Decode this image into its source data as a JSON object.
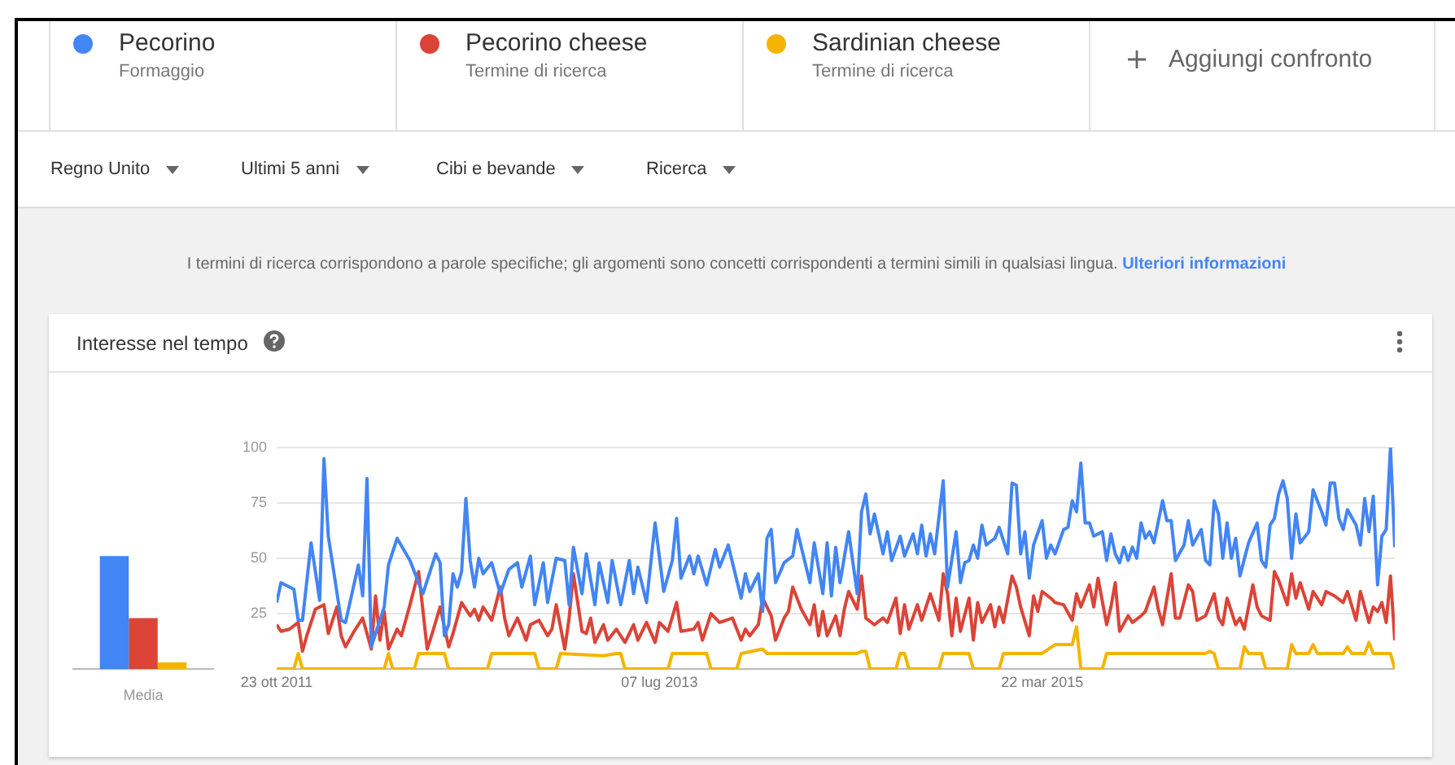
{
  "chart_data": [
    {
      "type": "bar",
      "title": "Interesse nel tempo",
      "categories": [
        "Media"
      ],
      "ylim": [
        0,
        100
      ],
      "tick_labels": "x",
      "series": [
        {
          "color": "#4285f4",
          "values": [
            51
          ]
        },
        {
          "color": "#db4437",
          "values": [
            23
          ]
        },
        {
          "color": "#f4b400",
          "values": [
            3
          ]
        }
      ]
    },
    {
      "type": "line",
      "legend": "top",
      "grid": "y",
      "annotations": [
        "Formaggio",
        "Termine di ricerca",
        "Termine di ricerca",
        "Aggiungi confronto",
        "Regno Unito",
        "Ultimi 5 anni",
        "Cibi e bevande",
        "Ricerca",
        "I termini di ricerca corrispondono a parole specifiche; gli argomenti sono concetti corrispondenti a termini simili in qualsiasi lingua.",
        "Ulteriori informazioni"
      ],
      "xlim": [
        "2011-10-23",
        "2016-10-16"
      ],
      "xticks": [
        {
          "value": "2011-10-23",
          "label": "23 ott 2011"
        },
        {
          "value": "2013-07-07",
          "label": "07 lug 2013"
        },
        {
          "value": "2015-03-22",
          "label": "22 mar 2015"
        }
      ],
      "ylim": [
        0,
        100
      ],
      "yticks": [
        {
          "value": 0,
          "label": null
        },
        25,
        50,
        75,
        100
      ],
      "series": [
        {
          "name": "Pecorino",
          "color": "#4285f4",
          "x": [
            "2011-10-23",
            "2011-10-30",
            "2011-11-20",
            "2011-11-27",
            "2011-12-04",
            "2011-12-18",
            "2012-01-01",
            "2012-01-08",
            "2012-01-15",
            "2012-02-05",
            "2012-02-12",
            "2012-03-04",
            "2012-03-11",
            "2012-03-18",
            "2012-03-25",
            "2012-04-15",
            "2012-04-22",
            "2012-05-06",
            "2012-05-27",
            "2012-06-17",
            "2012-07-01",
            "2012-07-08",
            "2012-07-15",
            "2012-07-22",
            "2012-07-29",
            "2012-08-05",
            "2012-08-12",
            "2012-08-19",
            "2012-08-26",
            "2012-09-02",
            "2012-09-09",
            "2012-09-16",
            "2012-09-23",
            "2012-10-07",
            "2012-10-21",
            "2012-11-04",
            "2012-11-18",
            "2012-11-25",
            "2012-12-09",
            "2012-12-16",
            "2012-12-30",
            "2013-01-06",
            "2013-01-20",
            "2013-02-03",
            "2013-02-10",
            "2013-02-17",
            "2013-03-03",
            "2013-03-10",
            "2013-03-24",
            "2013-03-31",
            "2013-04-14",
            "2013-04-21",
            "2013-05-05",
            "2013-05-19",
            "2013-05-26",
            "2013-06-02",
            "2013-06-16",
            "2013-06-30",
            "2013-07-14",
            "2013-07-28",
            "2013-08-04",
            "2013-08-11",
            "2013-08-25",
            "2013-09-01",
            "2013-09-08",
            "2013-09-22",
            "2013-10-06",
            "2013-10-13",
            "2013-10-27",
            "2013-11-17",
            "2013-11-24",
            "2013-12-01",
            "2013-12-15",
            "2013-12-22",
            "2013-12-29",
            "2014-01-05",
            "2014-01-12",
            "2014-01-26",
            "2014-02-09",
            "2014-02-16",
            "2014-03-09",
            "2014-03-16",
            "2014-03-30",
            "2014-04-06",
            "2014-04-13",
            "2014-04-20",
            "2014-04-27",
            "2014-05-11",
            "2014-05-25",
            "2014-06-01",
            "2014-06-08",
            "2014-06-15",
            "2014-06-22",
            "2014-07-06",
            "2014-07-13",
            "2014-07-20",
            "2014-08-03",
            "2014-08-10",
            "2014-08-24",
            "2014-08-31",
            "2014-09-07",
            "2014-09-14",
            "2014-09-21",
            "2014-09-28",
            "2014-10-12",
            "2014-10-19",
            "2014-11-02",
            "2014-11-09",
            "2014-11-16",
            "2014-11-23",
            "2014-11-30",
            "2014-12-07",
            "2014-12-14",
            "2014-12-21",
            "2015-01-04",
            "2015-01-11",
            "2015-01-25",
            "2015-02-01",
            "2015-02-08",
            "2015-02-15",
            "2015-02-22",
            "2015-03-01",
            "2015-03-08",
            "2015-03-22",
            "2015-03-29",
            "2015-04-05",
            "2015-04-12",
            "2015-04-26",
            "2015-05-03",
            "2015-05-10",
            "2015-05-17",
            "2015-05-24",
            "2015-05-31",
            "2015-06-07",
            "2015-06-14",
            "2015-06-28",
            "2015-07-05",
            "2015-07-12",
            "2015-07-19",
            "2015-07-26",
            "2015-08-02",
            "2015-08-09",
            "2015-08-16",
            "2015-08-23",
            "2015-08-30",
            "2015-09-06",
            "2015-09-13",
            "2015-09-20",
            "2015-10-04",
            "2015-10-11",
            "2015-10-18",
            "2015-10-25",
            "2015-11-08",
            "2015-11-15",
            "2015-11-22",
            "2015-12-06",
            "2015-12-13",
            "2015-12-20",
            "2015-12-27",
            "2016-01-03",
            "2016-01-10",
            "2016-01-17",
            "2016-01-24",
            "2016-01-31",
            "2016-02-07",
            "2016-02-21",
            "2016-03-06",
            "2016-03-13",
            "2016-03-20",
            "2016-03-27",
            "2016-04-03",
            "2016-04-10",
            "2016-04-17",
            "2016-04-24",
            "2016-05-01",
            "2016-05-08",
            "2016-05-15",
            "2016-05-29",
            "2016-06-05",
            "2016-06-19",
            "2016-06-26",
            "2016-07-03",
            "2016-07-10",
            "2016-07-17",
            "2016-07-24",
            "2016-07-31",
            "2016-08-14",
            "2016-08-21",
            "2016-08-28",
            "2016-09-04",
            "2016-09-11",
            "2016-09-18",
            "2016-09-25",
            "2016-10-02",
            "2016-10-09",
            "2016-10-16"
          ],
          "values": [
            30,
            39,
            36,
            22,
            22,
            57,
            31,
            95,
            60,
            22,
            21,
            47,
            33,
            86,
            10,
            28,
            47,
            59,
            49,
            34,
            46,
            52,
            48,
            15,
            20,
            43,
            37,
            44,
            77,
            49,
            37,
            50,
            43,
            48,
            34,
            45,
            48,
            37,
            51,
            29,
            48,
            30,
            50,
            49,
            29,
            55,
            34,
            52,
            29,
            48,
            30,
            49,
            29,
            49,
            34,
            46,
            30,
            66,
            35,
            49,
            68,
            41,
            51,
            43,
            51,
            38,
            54,
            46,
            56,
            32,
            43,
            35,
            43,
            26,
            59,
            63,
            39,
            48,
            51,
            63,
            39,
            57,
            34,
            57,
            33,
            55,
            39,
            62,
            34,
            71,
            79,
            61,
            70,
            52,
            62,
            49,
            60,
            51,
            61,
            52,
            65,
            51,
            61,
            52,
            85,
            37,
            62,
            39,
            48,
            49,
            56,
            50,
            65,
            56,
            59,
            64,
            52,
            84,
            83,
            52,
            62,
            41,
            56,
            67,
            50,
            56,
            52,
            63,
            64,
            76,
            71,
            93,
            66,
            66,
            60,
            62,
            49,
            61,
            52,
            48,
            55,
            49,
            55,
            50,
            66,
            59,
            62,
            57,
            76,
            67,
            67,
            49,
            56,
            67,
            56,
            63,
            49,
            47,
            76,
            70,
            50,
            66,
            50,
            59,
            42,
            57,
            66,
            49,
            46,
            65,
            68,
            79,
            85,
            77,
            50,
            70,
            57,
            62,
            81,
            71,
            65,
            84,
            84,
            68,
            63,
            72,
            65,
            56,
            77,
            62,
            78,
            38,
            60,
            63,
            100,
            55
          ]
        },
        {
          "name": "Pecorino cheese",
          "color": "#db4437",
          "x": [
            "2011-10-23",
            "2011-10-30",
            "2011-11-13",
            "2011-11-27",
            "2011-12-04",
            "2011-12-11",
            "2011-12-25",
            "2012-01-08",
            "2012-01-15",
            "2012-01-29",
            "2012-02-05",
            "2012-02-12",
            "2012-02-26",
            "2012-03-11",
            "2012-03-18",
            "2012-03-25",
            "2012-04-01",
            "2012-04-08",
            "2012-04-15",
            "2012-04-22",
            "2012-05-06",
            "2012-05-13",
            "2012-05-27",
            "2012-06-10",
            "2012-06-24",
            "2012-07-01",
            "2012-07-15",
            "2012-07-29",
            "2012-08-05",
            "2012-08-19",
            "2012-09-02",
            "2012-09-09",
            "2012-09-16",
            "2012-09-23",
            "2012-10-07",
            "2012-10-21",
            "2012-10-28",
            "2012-11-04",
            "2012-11-18",
            "2012-12-02",
            "2012-12-09",
            "2012-12-23",
            "2013-01-06",
            "2013-01-13",
            "2013-01-20",
            "2013-02-03",
            "2013-02-10",
            "2013-02-17",
            "2013-03-03",
            "2013-03-10",
            "2013-03-17",
            "2013-03-24",
            "2013-04-07",
            "2013-04-14",
            "2013-04-28",
            "2013-05-12",
            "2013-05-26",
            "2013-06-02",
            "2013-06-16",
            "2013-06-30",
            "2013-07-07",
            "2013-07-21",
            "2013-08-04",
            "2013-08-11",
            "2013-09-01",
            "2013-09-08",
            "2013-09-15",
            "2013-09-29",
            "2013-10-13",
            "2013-11-03",
            "2013-11-17",
            "2013-11-24",
            "2013-12-01",
            "2013-12-15",
            "2013-12-22",
            "2014-01-05",
            "2014-01-12",
            "2014-01-26",
            "2014-02-02",
            "2014-02-09",
            "2014-02-23",
            "2014-03-09",
            "2014-03-16",
            "2014-03-23",
            "2014-03-30",
            "2014-04-06",
            "2014-04-20",
            "2014-04-27",
            "2014-05-04",
            "2014-05-11",
            "2014-05-25",
            "2014-06-01",
            "2014-06-08",
            "2014-06-22",
            "2014-07-06",
            "2014-07-13",
            "2014-07-27",
            "2014-08-03",
            "2014-08-10",
            "2014-08-17",
            "2014-08-31",
            "2014-09-07",
            "2014-09-21",
            "2014-10-05",
            "2014-10-12",
            "2014-10-19",
            "2014-10-26",
            "2014-11-02",
            "2014-11-09",
            "2014-11-23",
            "2014-11-30",
            "2014-12-07",
            "2014-12-14",
            "2014-12-28",
            "2015-01-04",
            "2015-01-11",
            "2015-01-18",
            "2015-02-01",
            "2015-02-08",
            "2015-02-15",
            "2015-03-01",
            "2015-03-08",
            "2015-03-15",
            "2015-03-22",
            "2015-04-05",
            "2015-04-12",
            "2015-04-26",
            "2015-05-10",
            "2015-05-17",
            "2015-05-24",
            "2015-06-07",
            "2015-06-14",
            "2015-06-21",
            "2015-07-05",
            "2015-07-12",
            "2015-07-19",
            "2015-07-26",
            "2015-08-09",
            "2015-08-16",
            "2015-08-30",
            "2015-09-06",
            "2015-09-20",
            "2015-09-27",
            "2015-10-04",
            "2015-10-18",
            "2015-10-25",
            "2015-11-01",
            "2015-11-15",
            "2015-11-22",
            "2015-11-29",
            "2015-12-13",
            "2015-12-27",
            "2016-01-03",
            "2016-01-10",
            "2016-01-17",
            "2016-01-31",
            "2016-02-07",
            "2016-02-14",
            "2016-02-28",
            "2016-03-06",
            "2016-03-13",
            "2016-03-27",
            "2016-04-03",
            "2016-04-10",
            "2016-04-24",
            "2016-05-01",
            "2016-05-08",
            "2016-05-15",
            "2016-05-29",
            "2016-06-05",
            "2016-06-19",
            "2016-06-26",
            "2016-07-10",
            "2016-07-24",
            "2016-07-31",
            "2016-08-14",
            "2016-08-21",
            "2016-09-04",
            "2016-09-11",
            "2016-09-18",
            "2016-09-25",
            "2016-10-02",
            "2016-10-09",
            "2016-10-16"
          ],
          "values": [
            20,
            17,
            18,
            21,
            8,
            15,
            27,
            29,
            16,
            28,
            15,
            10,
            17,
            23,
            16,
            9,
            33,
            13,
            26,
            9,
            18,
            15,
            29,
            44,
            9,
            15,
            28,
            10,
            16,
            30,
            24,
            27,
            22,
            28,
            22,
            37,
            23,
            15,
            23,
            13,
            20,
            22,
            15,
            18,
            29,
            9,
            23,
            43,
            17,
            16,
            23,
            12,
            20,
            13,
            18,
            12,
            20,
            13,
            21,
            12,
            21,
            17,
            30,
            17,
            18,
            21,
            13,
            25,
            21,
            23,
            13,
            18,
            15,
            20,
            32,
            24,
            13,
            23,
            26,
            37,
            27,
            20,
            29,
            15,
            26,
            15,
            24,
            15,
            27,
            35,
            27,
            42,
            23,
            20,
            23,
            21,
            32,
            16,
            29,
            18,
            29,
            22,
            34,
            22,
            43,
            34,
            15,
            32,
            17,
            32,
            13,
            30,
            21,
            29,
            19,
            28,
            21,
            42,
            37,
            28,
            15,
            33,
            26,
            35,
            32,
            30,
            29,
            22,
            34,
            28,
            38,
            28,
            41,
            20,
            28,
            39,
            17,
            24,
            21,
            24,
            26,
            37,
            27,
            20,
            43,
            23,
            23,
            38,
            35,
            22,
            24,
            34,
            23,
            20,
            32,
            20,
            23,
            18,
            38,
            28,
            24,
            22,
            44,
            40,
            29,
            43,
            32,
            39,
            27,
            35,
            29,
            35,
            33,
            30,
            35,
            22,
            35,
            21,
            28,
            26,
            30,
            21,
            42,
            13
          ]
        },
        {
          "name": "Sardinian cheese",
          "color": "#f4b400",
          "x": [
            "2011-10-23",
            "2011-11-20",
            "2011-11-27",
            "2011-12-04",
            "2012-04-15",
            "2012-04-22",
            "2012-04-29",
            "2012-06-03",
            "2012-06-10",
            "2012-07-22",
            "2012-07-29",
            "2012-09-30",
            "2012-10-07",
            "2012-12-16",
            "2012-12-23",
            "2013-01-20",
            "2013-01-27",
            "2013-04-07",
            "2013-04-28",
            "2013-05-05",
            "2013-05-12",
            "2013-07-21",
            "2013-07-28",
            "2013-09-22",
            "2013-09-29",
            "2013-11-10",
            "2013-11-17",
            "2013-12-22",
            "2013-12-29",
            "2014-05-25",
            "2014-06-01",
            "2014-06-08",
            "2014-06-15",
            "2014-07-27",
            "2014-08-03",
            "2014-08-10",
            "2014-08-17",
            "2014-10-05",
            "2014-10-12",
            "2014-11-23",
            "2014-11-30",
            "2015-01-11",
            "2015-01-18",
            "2015-03-22",
            "2015-04-12",
            "2015-05-10",
            "2015-05-17",
            "2015-05-24",
            "2015-06-28",
            "2015-07-05",
            "2015-12-13",
            "2015-12-20",
            "2015-12-27",
            "2016-01-03",
            "2016-02-07",
            "2016-02-14",
            "2016-02-21",
            "2016-03-13",
            "2016-03-20",
            "2016-04-24",
            "2016-05-01",
            "2016-05-08",
            "2016-05-29",
            "2016-06-05",
            "2016-06-12",
            "2016-07-24",
            "2016-07-31",
            "2016-08-07",
            "2016-08-28",
            "2016-09-04",
            "2016-09-11",
            "2016-10-09",
            "2016-10-16"
          ],
          "values": [
            0,
            0,
            7,
            0,
            0,
            7,
            0,
            0,
            7,
            7,
            0,
            0,
            7,
            7,
            0,
            0,
            7,
            6,
            7,
            7,
            0,
            0,
            7,
            7,
            0,
            0,
            7,
            9,
            7,
            7,
            8,
            8,
            0,
            0,
            7,
            7,
            0,
            0,
            7,
            7,
            0,
            0,
            7,
            7,
            11,
            11,
            19,
            0,
            0,
            7,
            7,
            8,
            7,
            0,
            0,
            10,
            7,
            7,
            0,
            0,
            11,
            7,
            7,
            11,
            7,
            7,
            10,
            7,
            7,
            12,
            7,
            7,
            0
          ]
        }
      ]
    }
  ]
}
